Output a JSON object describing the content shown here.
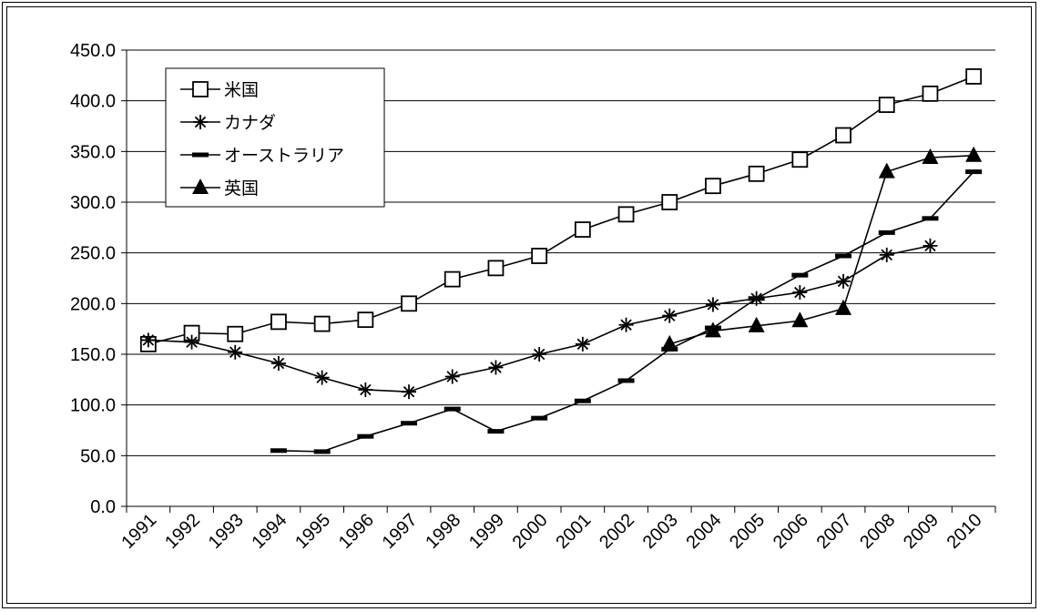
{
  "chart_data": {
    "type": "line",
    "categories": [
      "1991",
      "1992",
      "1993",
      "1994",
      "1995",
      "1996",
      "1997",
      "1998",
      "1999",
      "2000",
      "2001",
      "2002",
      "2003",
      "2004",
      "2005",
      "2006",
      "2007",
      "2008",
      "2009",
      "2010"
    ],
    "ylim": [
      0,
      450
    ],
    "yticks": [
      "0.0",
      "50.0",
      "100.0",
      "150.0",
      "200.0",
      "250.0",
      "300.0",
      "350.0",
      "400.0",
      "450.0"
    ],
    "grid": "horizontal",
    "legend_position": "top-left",
    "series": [
      {
        "name": "米国",
        "marker": "square",
        "values": [
          160,
          171,
          170,
          182,
          180,
          184,
          200,
          224,
          235,
          247,
          273,
          288,
          300,
          316,
          328,
          342,
          366,
          396,
          407,
          424
        ]
      },
      {
        "name": "カナダ",
        "marker": "asterisk",
        "values": [
          164,
          162,
          152,
          141,
          127,
          115,
          113,
          128,
          137,
          150,
          160,
          179,
          188,
          199,
          205,
          211,
          222,
          248,
          257,
          null
        ]
      },
      {
        "name": "オーストラリア",
        "marker": "dash",
        "values": [
          null,
          null,
          null,
          55,
          54,
          69,
          82,
          96,
          74,
          87,
          104,
          124,
          155,
          176,
          205,
          228,
          247,
          270,
          284,
          330
        ]
      },
      {
        "name": "英国",
        "marker": "triangle",
        "values": [
          null,
          null,
          null,
          null,
          null,
          null,
          null,
          null,
          null,
          null,
          null,
          null,
          160,
          173,
          178,
          183,
          195,
          330,
          344,
          346
        ]
      }
    ]
  }
}
